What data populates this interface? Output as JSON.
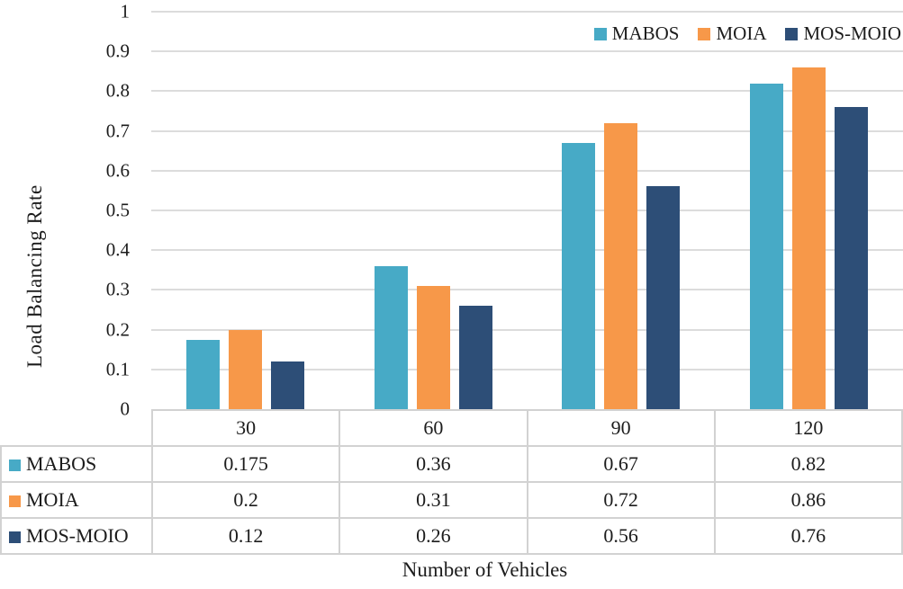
{
  "figure": {
    "background": "#FFFFFF",
    "text_color": "#1C1C1C"
  },
  "chart_data": {
    "type": "bar",
    "title": "",
    "categories": [
      "30",
      "60",
      "90",
      "120"
    ],
    "series": [
      {
        "name": "MABOS",
        "color": "#47AAC6",
        "values": [
          0.175,
          0.36,
          0.67,
          0.82
        ]
      },
      {
        "name": "MOIA",
        "color": "#F79849",
        "values": [
          0.2,
          0.31,
          0.72,
          0.86
        ]
      },
      {
        "name": "MOS-MOIO",
        "color": "#2D4E77",
        "values": [
          0.12,
          0.26,
          0.56,
          0.76
        ]
      }
    ],
    "xlabel": "Number of Vehicles",
    "ylabel": "Load Balancing Rate",
    "ylim": [
      0,
      1
    ],
    "yticks": [
      0,
      0.1,
      0.2,
      0.3,
      0.4,
      0.5,
      0.6,
      0.7,
      0.8,
      0.9,
      1
    ],
    "ytick_labels": [
      "0",
      "0.1",
      "0.2",
      "0.3",
      "0.4",
      "0.5",
      "0.6",
      "0.7",
      "0.8",
      "0.9",
      "1"
    ],
    "grid": "horizontal",
    "gridline_color": "#DCDCDC",
    "legend_position": "top-right",
    "data_table": {
      "shown": true,
      "border_color": "#D2D2D2",
      "cell_values": [
        [
          "0.175",
          "0.36",
          "0.67",
          "0.82"
        ],
        [
          "0.2",
          "0.31",
          "0.72",
          "0.86"
        ],
        [
          "0.12",
          "0.26",
          "0.56",
          "0.76"
        ]
      ]
    }
  }
}
